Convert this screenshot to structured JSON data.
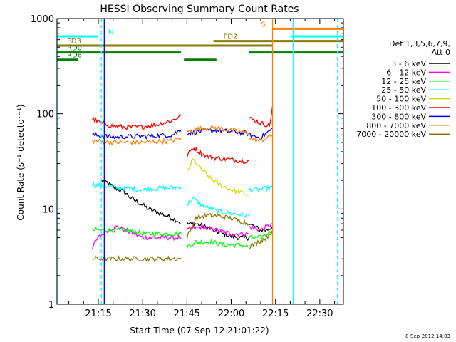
{
  "chart_data": {
    "type": "line",
    "title": "HESSI Observing Summary Count Rates",
    "xlabel": "Start Time (07-Sep-12 21:01:22)",
    "ylabel": "Count Rate (s⁻¹ detector⁻¹)",
    "yscale": "log",
    "ylim": [
      1,
      1000
    ],
    "xlim": [
      "21:01",
      "22:38"
    ],
    "x_ticks": [
      "21:15",
      "21:30",
      "21:45",
      "22:00",
      "22:15",
      "22:30"
    ],
    "y_ticks": [
      "1",
      "10",
      "100",
      "1000"
    ],
    "legend": {
      "header": [
        "Det 1,3,5,6,7,9,",
        "Att 0"
      ],
      "placement": "right"
    },
    "series": [
      {
        "name": "3 - 6 keV",
        "color": "#000000",
        "segments": [
          {
            "x": [
              "21:16",
              "21:18",
              "21:20",
              "21:22",
              "21:24",
              "21:26",
              "21:28",
              "21:30",
              "21:32",
              "21:34",
              "21:36",
              "21:38",
              "21:40",
              "21:42",
              "21:43"
            ],
            "y": [
              20,
              19,
              17,
              16,
              15,
              13,
              12,
              11,
              10,
              9.5,
              9,
              8.5,
              8,
              7.5,
              7
            ]
          },
          {
            "x": [
              "21:45",
              "21:48",
              "21:51",
              "21:54",
              "21:57",
              "22:00",
              "22:03",
              "22:06"
            ],
            "y": [
              7,
              7,
              6.5,
              6,
              5.5,
              5.2,
              5,
              5
            ]
          },
          {
            "x": [
              "22:06",
              "22:08",
              "22:10",
              "22:12",
              "22:14"
            ],
            "y": [
              7,
              6.5,
              6,
              6,
              6.5
            ]
          }
        ]
      },
      {
        "name": "6 - 12 keV",
        "color": "#ff00ff",
        "segments": [
          {
            "x": [
              "21:13",
              "21:15",
              "21:18",
              "21:21",
              "21:24",
              "21:27",
              "21:30",
              "21:33",
              "21:36",
              "21:39",
              "21:43"
            ],
            "y": [
              4,
              5,
              6,
              6.5,
              6,
              5.5,
              5,
              5,
              5,
              5,
              5
            ]
          },
          {
            "x": [
              "21:45",
              "21:50",
              "21:55",
              "22:00",
              "22:06"
            ],
            "y": [
              6,
              6.5,
              6,
              5.5,
              5.5
            ]
          },
          {
            "x": [
              "22:06",
              "22:10",
              "22:14"
            ],
            "y": [
              6.5,
              6,
              7
            ]
          }
        ]
      },
      {
        "name": "12 - 25 keV",
        "color": "#00ff00",
        "segments": [
          {
            "x": [
              "21:13",
              "21:20",
              "21:25",
              "21:30",
              "21:35",
              "21:43"
            ],
            "y": [
              6,
              6,
              6,
              5.5,
              5.5,
              5.5
            ]
          },
          {
            "x": [
              "21:45",
              "21:48",
              "21:51",
              "21:54",
              "21:57",
              "22:00",
              "22:03",
              "22:06"
            ],
            "y": [
              4,
              4.5,
              4.5,
              4.5,
              4.2,
              4.2,
              4.2,
              4
            ]
          },
          {
            "x": [
              "22:06",
              "22:10",
              "22:14"
            ],
            "y": [
              5,
              5,
              6
            ]
          }
        ]
      },
      {
        "name": "25 - 50 keV",
        "color": "#00ffff",
        "segments": [
          {
            "x": [
              "21:13",
              "21:20",
              "21:30",
              "21:43"
            ],
            "y": [
              18,
              17,
              16,
              17
            ]
          },
          {
            "x": [
              "21:45",
              "21:47",
              "21:50",
              "21:55",
              "22:00",
              "22:06"
            ],
            "y": [
              11,
              13,
              11,
              9.5,
              9,
              8.5
            ]
          },
          {
            "x": [
              "22:06",
              "22:10",
              "22:14"
            ],
            "y": [
              16,
              16,
              17
            ]
          }
        ]
      },
      {
        "name": "50 - 100 keV",
        "color": "#d8d800",
        "segments": [
          {
            "x": [
              "21:45",
              "21:47",
              "21:50",
              "21:53",
              "21:56",
              "22:00",
              "22:03",
              "22:06"
            ],
            "y": [
              24,
              33,
              26,
              21,
              18,
              16,
              15,
              14
            ]
          }
        ]
      },
      {
        "name": "100 - 300 keV",
        "color": "#ff0000",
        "segments": [
          {
            "x": [
              "21:13",
              "21:16",
              "21:20",
              "21:25",
              "21:30",
              "21:35",
              "21:40",
              "21:43"
            ],
            "y": [
              88,
              80,
              74,
              72,
              73,
              77,
              85,
              96
            ]
          },
          {
            "x": [
              "21:45",
              "21:47",
              "21:50",
              "21:53",
              "21:56",
              "22:00",
              "22:03",
              "22:06"
            ],
            "y": [
              36,
              44,
              38,
              35,
              34,
              33,
              32,
              32
            ]
          },
          {
            "x": [
              "22:06",
              "22:08",
              "22:11",
              "22:13",
              "22:14"
            ],
            "y": [
              90,
              85,
              78,
              75,
              120
            ]
          }
        ]
      },
      {
        "name": "300 - 800 keV",
        "color": "#0000ff",
        "segments": [
          {
            "x": [
              "21:13",
              "21:20",
              "21:30",
              "21:40",
              "21:43"
            ],
            "y": [
              60,
              57,
              58,
              60,
              68
            ]
          },
          {
            "x": [
              "21:45",
              "21:50",
              "21:55",
              "22:00",
              "22:06"
            ],
            "y": [
              62,
              66,
              67,
              65,
              62
            ]
          },
          {
            "x": [
              "22:06",
              "22:10",
              "22:14"
            ],
            "y": [
              60,
              56,
              70
            ]
          }
        ]
      },
      {
        "name": "800 - 7000 keV",
        "color": "#ff8000",
        "segments": [
          {
            "x": [
              "21:13",
              "21:20",
              "21:30",
              "21:40",
              "21:43"
            ],
            "y": [
              52,
              50,
              50,
              52,
              56
            ]
          },
          {
            "x": [
              "21:45",
              "21:50",
              "21:55",
              "22:00",
              "22:06"
            ],
            "y": [
              65,
              70,
              71,
              67,
              62
            ]
          },
          {
            "x": [
              "22:06",
              "22:10",
              "22:14"
            ],
            "y": [
              55,
              52,
              60
            ]
          }
        ]
      },
      {
        "name": "7000 - 20000 keV",
        "color": "#8a7a00",
        "segments": [
          {
            "x": [
              "21:13",
              "21:18",
              "21:25",
              "21:32",
              "21:38",
              "21:43"
            ],
            "y": [
              3,
              3,
              3,
              3,
              3,
              3
            ]
          },
          {
            "x": [
              "21:45",
              "21:48",
              "21:51",
              "21:55",
              "22:00",
              "22:03",
              "22:06"
            ],
            "y": [
              5,
              8,
              8.5,
              8.5,
              8,
              7.5,
              7
            ]
          },
          {
            "x": [
              "22:06",
              "22:09",
              "22:12",
              "22:14"
            ],
            "y": [
              4,
              4.5,
              5,
              6
            ]
          }
        ]
      }
    ],
    "status_bars": [
      {
        "label": "N",
        "color": "#00ffff",
        "value": 650,
        "segments": [
          [
            "21:01",
            "21:15"
          ]
        ]
      },
      {
        "label": "",
        "color": "#00ffff",
        "value": 650,
        "segments": [
          [
            "22:20",
            "22:38"
          ]
        ]
      },
      {
        "label": "S",
        "color": "#ff8000",
        "value": 780,
        "segments": [
          [
            "22:14",
            "22:38"
          ]
        ]
      },
      {
        "label": "FD2",
        "color": "#8a7a00",
        "value": 580,
        "segments": [
          [
            "21:54",
            "22:38"
          ]
        ]
      },
      {
        "label": "FD3",
        "color": "#8a7a00",
        "value": 520,
        "segments": [
          [
            "21:01",
            "22:14"
          ]
        ]
      },
      {
        "label": "RD0",
        "color": "#007f00",
        "value": 440,
        "segments": [
          [
            "21:01",
            "21:43"
          ],
          [
            "22:06",
            "22:38"
          ]
        ]
      },
      {
        "label": "RD6",
        "color": "#007f00",
        "value": 370,
        "segments": [
          [
            "21:01",
            "21:08"
          ],
          [
            "21:44",
            "21:55"
          ]
        ]
      }
    ],
    "vertical_lines": [
      {
        "x": "21:01",
        "color": "#00ffff",
        "style": "solid"
      },
      {
        "x": "21:16",
        "color": "#00ffff",
        "style": "dashed"
      },
      {
        "x": "21:17",
        "color": "#0000ff",
        "style": "solid"
      },
      {
        "x": "22:14",
        "color": "#ff8000",
        "style": "solid"
      },
      {
        "x": "22:21",
        "color": "#00ffff",
        "style": "solid"
      },
      {
        "x": "22:36",
        "color": "#00ffff",
        "style": "dashed"
      }
    ],
    "timestamp": "8-Sep-2012 14:03"
  }
}
